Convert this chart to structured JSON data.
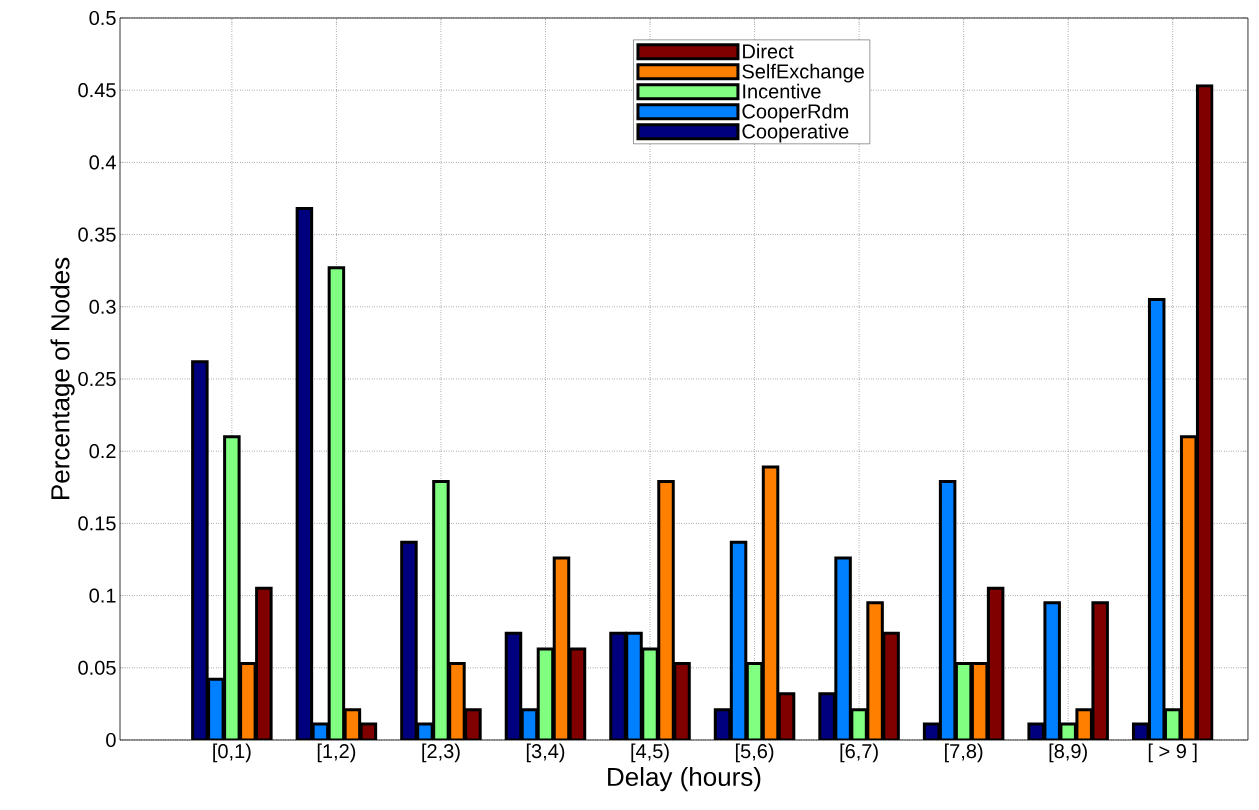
{
  "chart_data": {
    "type": "bar",
    "xlabel": "Delay (hours)",
    "ylabel": "Percentage of Nodes",
    "categories": [
      "[0,1)",
      "[1,2)",
      "[2,3)",
      "[3,4)",
      "[4,5)",
      "[5,6)",
      "[6,7)",
      "[7,8)",
      "[8,9)",
      "[ > 9 ]"
    ],
    "series": [
      {
        "name": "Cooperative",
        "color": "#00007f",
        "values": [
          0.262,
          0.368,
          0.137,
          0.074,
          0.074,
          0.021,
          0.032,
          0.011,
          0.011,
          0.011
        ]
      },
      {
        "name": "CooperRdm",
        "color": "#0080ff",
        "values": [
          0.042,
          0.011,
          0.011,
          0.021,
          0.074,
          0.137,
          0.126,
          0.179,
          0.095,
          0.305
        ]
      },
      {
        "name": "Incentive",
        "color": "#80ff80",
        "values": [
          0.21,
          0.327,
          0.179,
          0.063,
          0.063,
          0.053,
          0.021,
          0.053,
          0.011,
          0.021
        ]
      },
      {
        "name": "SelfExchange",
        "color": "#ff8000",
        "values": [
          0.053,
          0.021,
          0.053,
          0.126,
          0.179,
          0.189,
          0.095,
          0.053,
          0.021,
          0.21
        ]
      },
      {
        "name": "Direct",
        "color": "#800000",
        "values": [
          0.105,
          0.011,
          0.021,
          0.063,
          0.053,
          0.032,
          0.074,
          0.105,
          0.095,
          0.453
        ]
      }
    ],
    "ylim": [
      0,
      0.5
    ],
    "yticks": [
      0,
      0.05,
      0.1,
      0.15,
      0.2,
      0.25,
      0.3,
      0.35,
      0.4,
      0.45,
      0.5
    ],
    "grid": true,
    "legend": "top"
  }
}
